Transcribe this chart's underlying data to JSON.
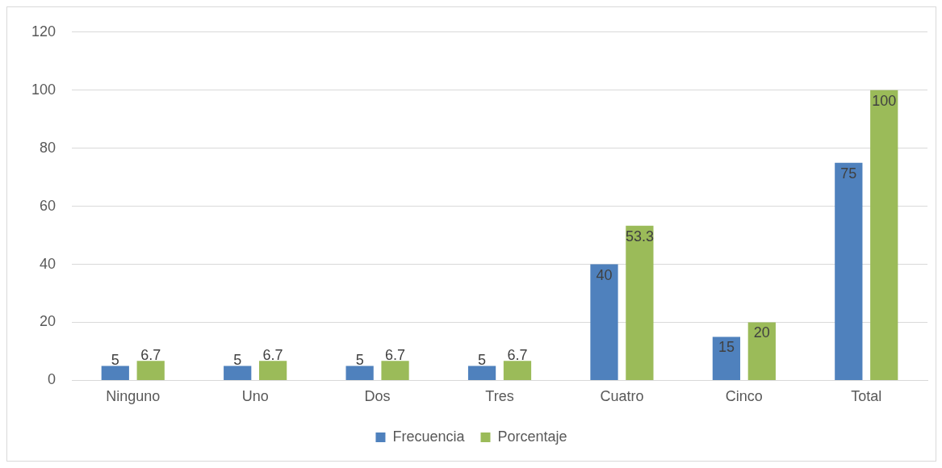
{
  "chart_data": {
    "type": "bar",
    "categories": [
      "Ninguno",
      "Uno",
      "Dos",
      "Tres",
      "Cuatro",
      "Cinco",
      "Total"
    ],
    "series": [
      {
        "name": "Frecuencia",
        "color": "#4f81bd",
        "values": [
          5,
          5,
          5,
          5,
          40,
          15,
          75
        ]
      },
      {
        "name": "Porcentaje",
        "color": "#9bbb59",
        "values": [
          6.7,
          6.7,
          6.7,
          6.7,
          53.3,
          20,
          100
        ]
      }
    ],
    "ylim": [
      0,
      120
    ],
    "yticks": [
      0,
      20,
      40,
      60,
      80,
      100,
      120
    ],
    "grid": "y",
    "legend": "bottom",
    "data_labels": true
  }
}
